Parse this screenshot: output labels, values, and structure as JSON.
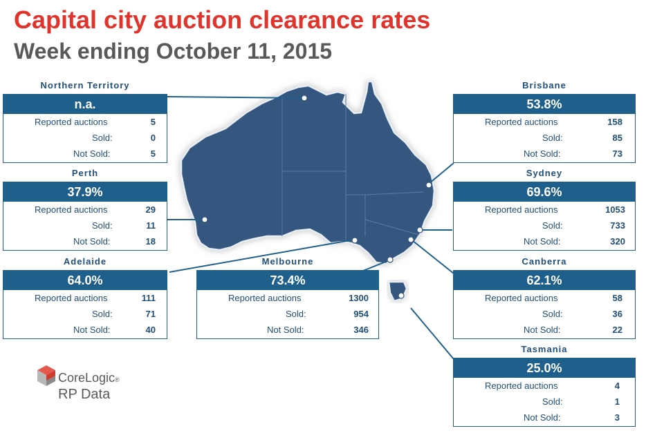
{
  "header": {
    "title": "Capital city auction clearance rates",
    "subtitle": "Week ending October 11, 2015"
  },
  "row_labels": {
    "reported": "Reported auctions",
    "sold": "Sold:",
    "not_sold": "Not Sold:"
  },
  "regions": {
    "northern_territory": {
      "name": "Northern Territory",
      "rate": "n.a.",
      "reported": "5",
      "sold": "0",
      "not_sold": "5"
    },
    "perth": {
      "name": "Perth",
      "rate": "37.9%",
      "reported": "29",
      "sold": "11",
      "not_sold": "18"
    },
    "adelaide": {
      "name": "Adelaide",
      "rate": "64.0%",
      "reported": "111",
      "sold": "71",
      "not_sold": "40"
    },
    "melbourne": {
      "name": "Melbourne",
      "rate": "73.4%",
      "reported": "1300",
      "sold": "954",
      "not_sold": "346"
    },
    "brisbane": {
      "name": "Brisbane",
      "rate": "53.8%",
      "reported": "158",
      "sold": "85",
      "not_sold": "73"
    },
    "sydney": {
      "name": "Sydney",
      "rate": "69.6%",
      "reported": "1053",
      "sold": "733",
      "not_sold": "320"
    },
    "canberra": {
      "name": "Canberra",
      "rate": "62.1%",
      "reported": "58",
      "sold": "36",
      "not_sold": "22"
    },
    "tasmania": {
      "name": "Tasmania",
      "rate": "25.0%",
      "reported": "4",
      "sold": "1",
      "not_sold": "3"
    }
  },
  "logo": {
    "brand": "CoreLogic",
    "registered": "®",
    "sub": "RP Data"
  },
  "colors": {
    "title": "#e0332b",
    "subtitle": "#595959",
    "card_header": "#1f5f8b",
    "card_text": "#1f4e79",
    "map_fill": "#34577f",
    "logo_red": "#d23a2c"
  }
}
